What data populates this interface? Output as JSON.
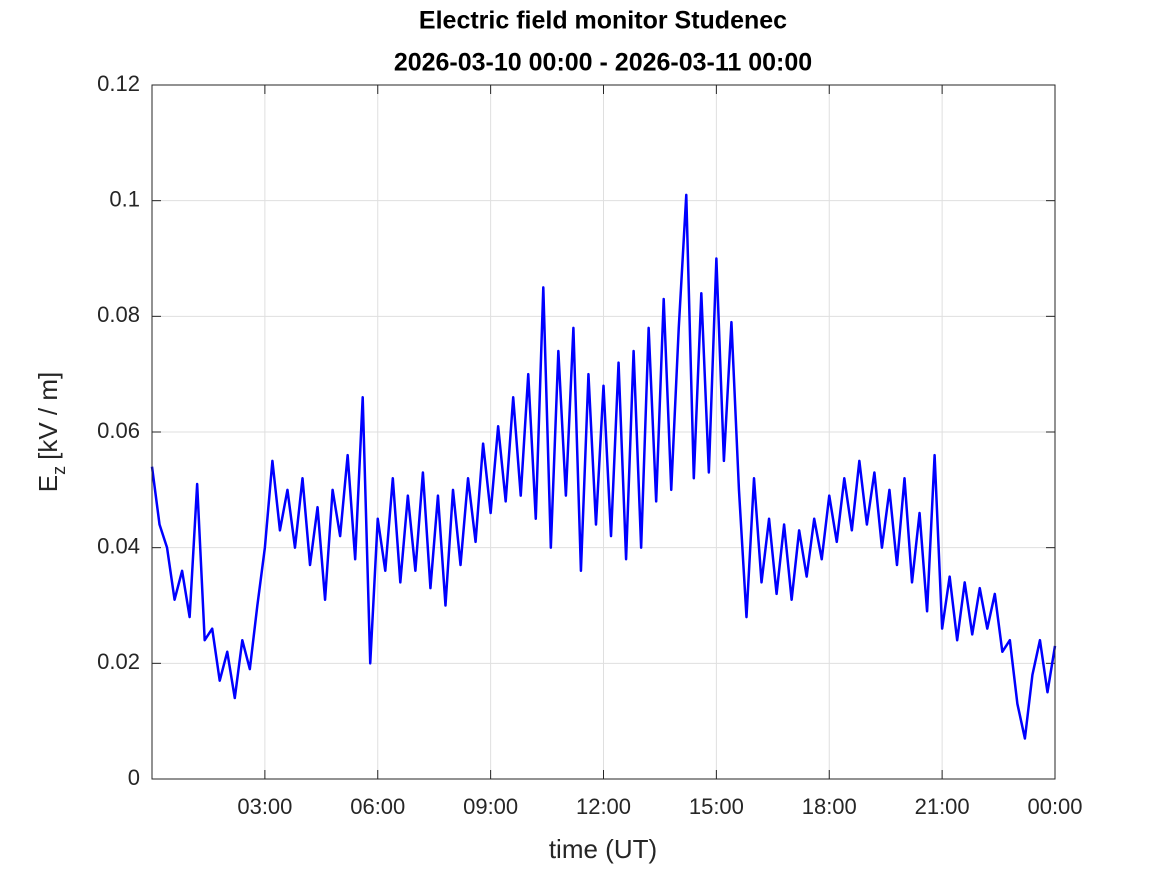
{
  "chart_data": {
    "type": "line",
    "title": "Electric field monitor Studenec",
    "subtitle": "2026-03-10 00:00 - 2026-03-11 00:00",
    "xlabel": "time (UT)",
    "ylabel": {
      "main": "E",
      "sub": "z",
      "unit": "[kV / m]"
    },
    "color": "#0000ff",
    "grid": true,
    "xlim": [
      0,
      24
    ],
    "xticks": [
      {
        "value": 3,
        "label": "03:00"
      },
      {
        "value": 6,
        "label": "06:00"
      },
      {
        "value": 9,
        "label": "09:00"
      },
      {
        "value": 12,
        "label": "12:00"
      },
      {
        "value": 15,
        "label": "15:00"
      },
      {
        "value": 18,
        "label": "18:00"
      },
      {
        "value": 21,
        "label": "21:00"
      },
      {
        "value": 24,
        "label": "00:00"
      }
    ],
    "ylim": [
      0,
      0.12
    ],
    "yticks": [
      0,
      0.02,
      0.04,
      0.06,
      0.08,
      0.1,
      0.12
    ],
    "x": [
      0,
      0.2,
      0.4,
      0.6,
      0.8,
      1,
      1.2,
      1.4,
      1.6,
      1.8,
      2,
      2.2,
      2.4,
      2.6,
      2.8,
      3,
      3.2,
      3.4,
      3.6,
      3.8,
      4,
      4.2,
      4.4,
      4.6,
      4.8,
      5,
      5.2,
      5.4,
      5.6,
      5.8,
      6,
      6.2,
      6.4,
      6.6,
      6.8,
      7,
      7.2,
      7.4,
      7.6,
      7.8,
      8,
      8.2,
      8.4,
      8.6,
      8.8,
      9,
      9.2,
      9.4,
      9.6,
      9.8,
      10,
      10.2,
      10.4,
      10.6,
      10.8,
      11,
      11.2,
      11.4,
      11.6,
      11.8,
      12,
      12.2,
      12.4,
      12.6,
      12.8,
      13,
      13.2,
      13.4,
      13.6,
      13.8,
      14,
      14.2,
      14.4,
      14.6,
      14.8,
      15,
      15.2,
      15.4,
      15.6,
      15.8,
      16,
      16.2,
      16.4,
      16.6,
      16.8,
      17,
      17.2,
      17.4,
      17.6,
      17.8,
      18,
      18.2,
      18.4,
      18.6,
      18.8,
      19,
      19.2,
      19.4,
      19.6,
      19.8,
      20,
      20.2,
      20.4,
      20.6,
      20.8,
      21,
      21.2,
      21.4,
      21.6,
      21.8,
      22,
      22.2,
      22.4,
      22.6,
      22.8,
      23,
      23.2,
      23.4,
      23.6,
      23.8,
      24
    ],
    "values": [
      0.054,
      0.044,
      0.04,
      0.031,
      0.036,
      0.028,
      0.051,
      0.024,
      0.026,
      0.017,
      0.022,
      0.014,
      0.024,
      0.019,
      0.03,
      0.04,
      0.055,
      0.043,
      0.05,
      0.04,
      0.052,
      0.037,
      0.047,
      0.031,
      0.05,
      0.042,
      0.056,
      0.038,
      0.066,
      0.02,
      0.045,
      0.036,
      0.052,
      0.034,
      0.049,
      0.036,
      0.053,
      0.033,
      0.049,
      0.03,
      0.05,
      0.037,
      0.052,
      0.041,
      0.058,
      0.046,
      0.061,
      0.048,
      0.066,
      0.049,
      0.07,
      0.045,
      0.085,
      0.04,
      0.074,
      0.049,
      0.078,
      0.036,
      0.07,
      0.044,
      0.068,
      0.042,
      0.072,
      0.038,
      0.074,
      0.04,
      0.078,
      0.048,
      0.083,
      0.05,
      0.078,
      0.101,
      0.052,
      0.084,
      0.053,
      0.09,
      0.055,
      0.079,
      0.05,
      0.028,
      0.052,
      0.034,
      0.045,
      0.032,
      0.044,
      0.031,
      0.043,
      0.035,
      0.045,
      0.038,
      0.049,
      0.041,
      0.052,
      0.043,
      0.055,
      0.044,
      0.053,
      0.04,
      0.05,
      0.037,
      0.052,
      0.034,
      0.046,
      0.029,
      0.056,
      0.026,
      0.035,
      0.024,
      0.034,
      0.025,
      0.033,
      0.026,
      0.032,
      0.022,
      0.024,
      0.013,
      0.007,
      0.018,
      0.024,
      0.015,
      0.023
    ]
  }
}
